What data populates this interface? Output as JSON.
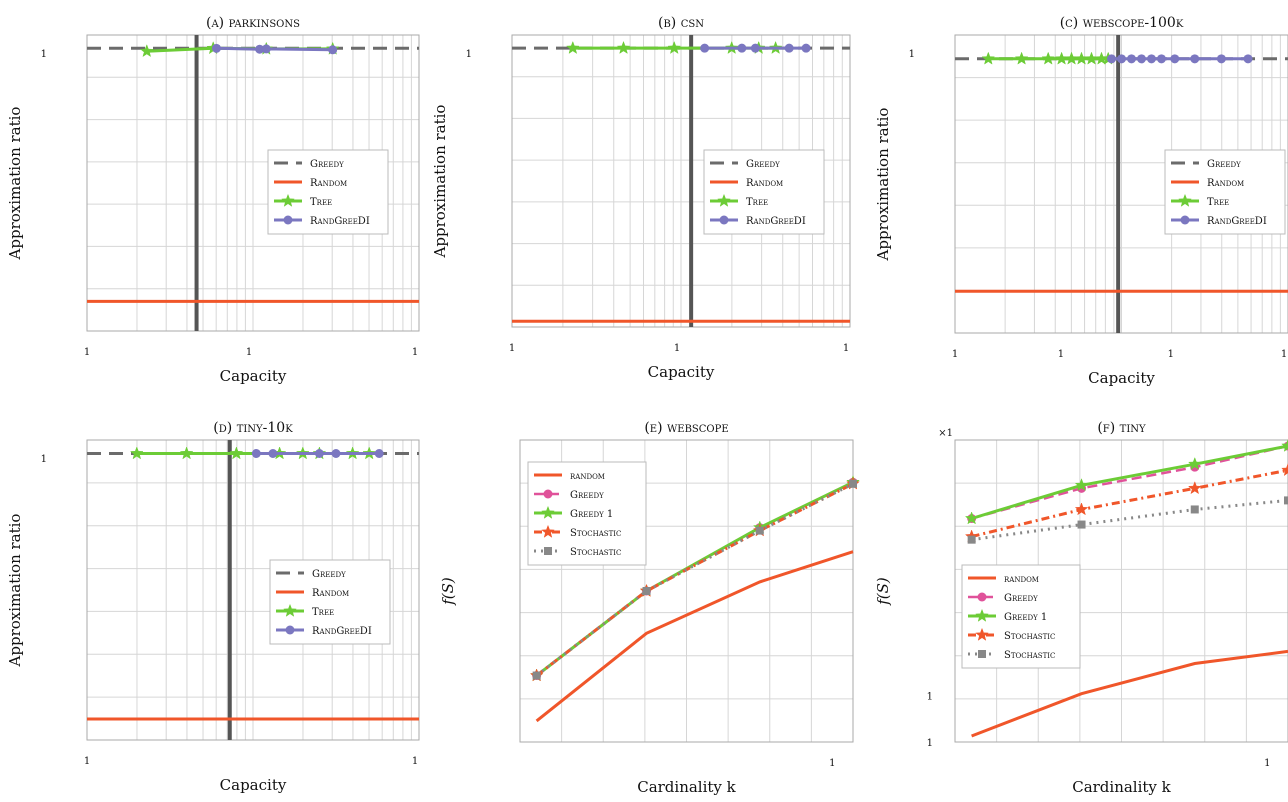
{
  "colors": {
    "greedy": "#6b6b6b",
    "random": "#f0562a",
    "tree": "#6ccc36",
    "randgreedi": "#7b77c0",
    "greedy_pink": "#e0529a",
    "stochastic": "#f0562a",
    "stochastic2": "#888888",
    "capacity_line": "#555555"
  },
  "chart_data": [
    {
      "type": "line",
      "title": "(a) parkinsons",
      "xlabel": "Capacity",
      "ylabel": "Approximation ratio",
      "x_scale": "log",
      "ytick_labels": [
        "1"
      ],
      "xtick_labels": [
        "1",
        "1",
        "1"
      ],
      "legend_position": "right",
      "grid": true,
      "vline_x": 0.33,
      "series": [
        {
          "name": "Greedy",
          "style": "greedy",
          "x": [
            0.0,
            1.0
          ],
          "y": [
            0.955,
            0.955
          ]
        },
        {
          "name": "Random",
          "style": "random",
          "x": [
            0.0,
            1.0
          ],
          "y": [
            0.1,
            0.1
          ]
        },
        {
          "name": "Tree",
          "style": "tree",
          "x": [
            0.18,
            0.38,
            0.54,
            0.74
          ],
          "y": [
            0.945,
            0.955,
            0.953,
            0.953
          ]
        },
        {
          "name": "RandGreeDI",
          "style": "randgreedi",
          "x": [
            0.39,
            0.52,
            0.54,
            0.74
          ],
          "y": [
            0.955,
            0.952,
            0.953,
            0.95
          ]
        }
      ]
    },
    {
      "type": "line",
      "title": "(b) csn",
      "xlabel": "Capacity",
      "ylabel": "Approximation ratio",
      "x_scale": "log",
      "ytick_labels": [
        "1"
      ],
      "xtick_labels": [
        "1",
        "1",
        "1"
      ],
      "legend_position": "right",
      "grid": true,
      "vline_x": 0.53,
      "series": [
        {
          "name": "Greedy",
          "style": "greedy",
          "x": [
            0.0,
            1.0
          ],
          "y": [
            0.955,
            0.955
          ]
        },
        {
          "name": "Random",
          "style": "random",
          "x": [
            0.0,
            1.0
          ],
          "y": [
            0.02,
            0.02
          ]
        },
        {
          "name": "Tree",
          "style": "tree",
          "x": [
            0.18,
            0.33,
            0.48,
            0.65,
            0.73,
            0.78
          ],
          "y": [
            0.955,
            0.955,
            0.955,
            0.955,
            0.955,
            0.955
          ]
        },
        {
          "name": "RandGreeDI",
          "style": "randgreedi",
          "x": [
            0.57,
            0.68,
            0.72,
            0.82,
            0.87
          ],
          "y": [
            0.955,
            0.955,
            0.955,
            0.955,
            0.955
          ]
        }
      ]
    },
    {
      "type": "line",
      "title": "(c) webscope-100k",
      "xlabel": "Capacity",
      "ylabel": "Approximation ratio",
      "x_scale": "log",
      "ytick_labels": [
        "1"
      ],
      "xtick_labels": [
        "1",
        "1",
        "1",
        "1"
      ],
      "legend_position": "right",
      "grid": true,
      "vline_x": 0.49,
      "series": [
        {
          "name": "Greedy",
          "style": "greedy",
          "x": [
            0.0,
            1.0
          ],
          "y": [
            0.92,
            0.92
          ]
        },
        {
          "name": "Random",
          "style": "random",
          "x": [
            0.0,
            1.0
          ],
          "y": [
            0.14,
            0.14
          ]
        },
        {
          "name": "Tree",
          "style": "tree",
          "x": [
            0.1,
            0.2,
            0.28,
            0.32,
            0.35,
            0.38,
            0.41,
            0.44,
            0.46
          ],
          "y": [
            0.92,
            0.92,
            0.92,
            0.92,
            0.92,
            0.92,
            0.92,
            0.92,
            0.92
          ]
        },
        {
          "name": "RandGreeDI",
          "style": "randgreedi",
          "x": [
            0.47,
            0.5,
            0.53,
            0.56,
            0.59,
            0.62,
            0.66,
            0.72,
            0.8,
            0.88
          ],
          "y": [
            0.92,
            0.92,
            0.92,
            0.92,
            0.92,
            0.92,
            0.92,
            0.92,
            0.92,
            0.92
          ]
        }
      ]
    },
    {
      "type": "line",
      "title": "(d) tiny-10k",
      "xlabel": "Capacity",
      "ylabel": "Approximation ratio",
      "x_scale": "log",
      "ytick_labels": [
        "1"
      ],
      "xtick_labels": [
        "1",
        "1"
      ],
      "legend_position": "right",
      "grid": true,
      "vline_x": 0.43,
      "series": [
        {
          "name": "Greedy",
          "style": "greedy",
          "x": [
            0.0,
            1.0
          ],
          "y": [
            0.955,
            0.955
          ]
        },
        {
          "name": "Random",
          "style": "random",
          "x": [
            0.0,
            1.0
          ],
          "y": [
            0.07,
            0.07
          ]
        },
        {
          "name": "Tree",
          "style": "tree",
          "x": [
            0.15,
            0.3,
            0.45,
            0.58,
            0.65,
            0.7,
            0.8,
            0.85
          ],
          "y": [
            0.955,
            0.955,
            0.955,
            0.955,
            0.955,
            0.955,
            0.955,
            0.955
          ]
        },
        {
          "name": "RandGreeDI",
          "style": "randgreedi",
          "x": [
            0.51,
            0.56,
            0.7,
            0.75,
            0.88
          ],
          "y": [
            0.955,
            0.955,
            0.955,
            0.955,
            0.955
          ]
        }
      ]
    },
    {
      "type": "line",
      "title": "(e) webscope",
      "xlabel": "Cardinality k",
      "ylabel": "f(S)",
      "ytick_labels": [],
      "xtick_labels": [
        "1"
      ],
      "legend_position": "top-left",
      "grid": true,
      "series": [
        {
          "name": "random",
          "style": "random",
          "x": [
            0.05,
            0.38,
            0.72,
            1.0
          ],
          "y": [
            0.07,
            0.36,
            0.53,
            0.63
          ]
        },
        {
          "name": "Greedy",
          "style": "greedy_pink",
          "x": [
            0.05,
            0.38,
            0.72,
            1.0
          ],
          "y": [
            0.22,
            0.5,
            0.71,
            0.86
          ]
        },
        {
          "name": "Greedy 1",
          "style": "tree",
          "x": [
            0.05,
            0.38,
            0.72,
            1.0
          ],
          "y": [
            0.22,
            0.5,
            0.71,
            0.86
          ]
        },
        {
          "name": "Stochastic",
          "style": "stochastic",
          "x": [
            0.05,
            0.38,
            0.72,
            1.0
          ],
          "y": [
            0.22,
            0.5,
            0.7,
            0.855
          ]
        },
        {
          "name": "Stochastic",
          "style": "stochastic2",
          "x": [
            0.05,
            0.38,
            0.72,
            1.0
          ],
          "y": [
            0.22,
            0.5,
            0.7,
            0.855
          ]
        }
      ]
    },
    {
      "type": "line",
      "title": "(f) tiny",
      "xlabel": "Cardinality k",
      "ylabel": "f(S)",
      "multiplier_label": "×1",
      "ytick_labels": [
        "1",
        "1"
      ],
      "xtick_labels": [
        "1"
      ],
      "legend_position": "left",
      "grid": true,
      "series": [
        {
          "name": "random",
          "style": "random",
          "x": [
            0.05,
            0.38,
            0.72,
            1.0
          ],
          "y": [
            0.02,
            0.16,
            0.26,
            0.3
          ]
        },
        {
          "name": "Greedy",
          "style": "greedy_pink",
          "x": [
            0.05,
            0.38,
            0.72,
            1.0
          ],
          "y": [
            0.74,
            0.84,
            0.91,
            0.98
          ]
        },
        {
          "name": "Greedy 1",
          "style": "tree",
          "x": [
            0.05,
            0.38,
            0.72,
            1.0
          ],
          "y": [
            0.74,
            0.85,
            0.92,
            0.98
          ]
        },
        {
          "name": "Stochastic",
          "style": "stochastic",
          "x": [
            0.05,
            0.38,
            0.72,
            1.0
          ],
          "y": [
            0.68,
            0.77,
            0.84,
            0.9
          ]
        },
        {
          "name": "Stochastic",
          "style": "stochastic2",
          "x": [
            0.05,
            0.38,
            0.72,
            1.0
          ],
          "y": [
            0.67,
            0.72,
            0.77,
            0.8
          ]
        }
      ]
    }
  ]
}
